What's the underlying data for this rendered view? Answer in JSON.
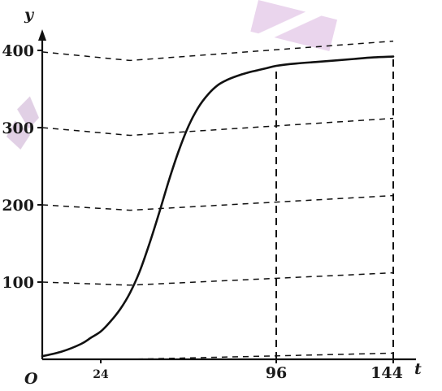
{
  "colors": {
    "ink": "#111111",
    "watermark": "#d9b2de",
    "background": "#ffffff"
  },
  "chart_data": {
    "type": "line",
    "title": "",
    "xlabel": "t",
    "ylabel": "y",
    "origin_label": "O",
    "xlim": [
      0,
      144
    ],
    "ylim": [
      0,
      420
    ],
    "grid": "dashed",
    "x_ticks": [
      {
        "value": 24,
        "label": "24"
      },
      {
        "value": 96,
        "label": "96"
      },
      {
        "value": 144,
        "label": "144"
      }
    ],
    "y_ticks": [
      {
        "value": 100,
        "label": "100"
      },
      {
        "value": 200,
        "label": "200"
      },
      {
        "value": 300,
        "label": "300"
      },
      {
        "value": 400,
        "label": "400"
      }
    ],
    "series": [
      {
        "style": "solid",
        "x": [
          0,
          8,
          16,
          20,
          24,
          28,
          32,
          36,
          40,
          44,
          48,
          52,
          56,
          60,
          64,
          68,
          72,
          76,
          80,
          84,
          88,
          92,
          96,
          104,
          112,
          120,
          128,
          136,
          144
        ],
        "y": [
          4,
          10,
          20,
          28,
          36,
          49,
          65,
          86,
          114,
          150,
          190,
          232,
          270,
          302,
          326,
          343,
          355,
          362,
          367,
          371,
          374,
          377,
          380,
          383,
          385,
          387,
          389,
          391,
          392
        ]
      }
    ],
    "reference_lines": [
      {
        "style": "dashed",
        "kind": "vertical",
        "x": 96,
        "from_y": 0,
        "to_y": 380
      },
      {
        "style": "dashed",
        "kind": "vertical",
        "x": 144,
        "from_y": 0,
        "to_y": 392
      }
    ],
    "guide_lines": [
      {
        "style": "dashed",
        "x": [
          0,
          36,
          144
        ],
        "y": [
          0,
          0,
          8
        ]
      },
      {
        "style": "dashed",
        "x": [
          0,
          36,
          144
        ],
        "y": [
          100,
          96,
          112
        ]
      },
      {
        "style": "dashed",
        "x": [
          0,
          36,
          144
        ],
        "y": [
          200,
          193,
          212
        ]
      },
      {
        "style": "dashed",
        "x": [
          0,
          36,
          144
        ],
        "y": [
          300,
          290,
          312
        ]
      },
      {
        "style": "dashed",
        "x": [
          0,
          36,
          144
        ],
        "y": [
          398,
          387,
          412
        ]
      }
    ]
  }
}
